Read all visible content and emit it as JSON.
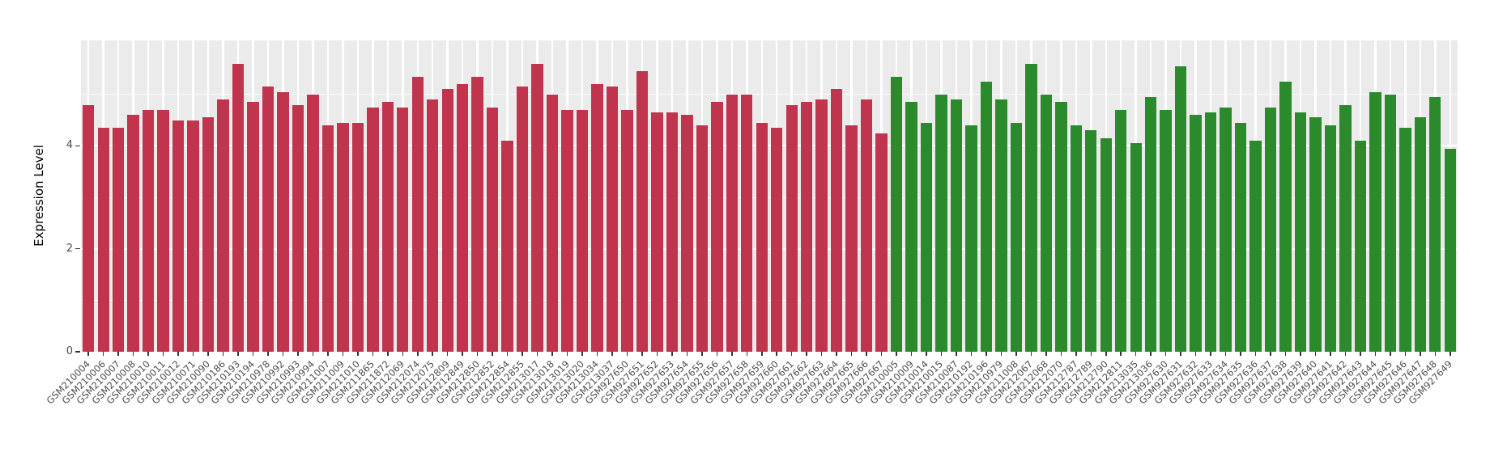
{
  "chart_data": {
    "type": "bar",
    "title": "",
    "xlabel": "",
    "ylabel": "Expression Level",
    "ylim": [
      0,
      6.05
    ],
    "yticks": [
      0,
      2,
      4
    ],
    "grid": true,
    "legend": "none",
    "panel_bg": "#ebebeb",
    "grid_color": "#ffffff",
    "tick_text_color": "#4d4d4d",
    "groups": [
      {
        "name": "group-red",
        "color": "#c0344e",
        "labels": [
          "GSM210004",
          "GSM210006",
          "GSM210007",
          "GSM210008",
          "GSM210010",
          "GSM210011",
          "GSM210012",
          "GSM210071",
          "GSM210090",
          "GSM210186",
          "GSM210193",
          "GSM210194",
          "GSM210978",
          "GSM210992",
          "GSM210993",
          "GSM210994",
          "GSM211007",
          "GSM211009",
          "GSM211010",
          "GSM211865",
          "GSM211872",
          "GSM212069",
          "GSM212074",
          "GSM212075",
          "GSM212809",
          "GSM212849",
          "GSM212850",
          "GSM212852",
          "GSM212854",
          "GSM212855",
          "GSM213017",
          "GSM213018",
          "GSM213019",
          "GSM213020",
          "GSM213034",
          "GSM213037",
          "GSM927650",
          "GSM927651",
          "GSM927652",
          "GSM927653",
          "GSM927654",
          "GSM927655",
          "GSM927656",
          "GSM927657",
          "GSM927658",
          "GSM927659",
          "GSM927660",
          "GSM927661",
          "GSM927662",
          "GSM927663",
          "GSM927664",
          "GSM927665",
          "GSM927666",
          "GSM927667"
        ],
        "values": [
          4.8,
          4.35,
          4.35,
          4.6,
          4.7,
          4.7,
          4.5,
          4.5,
          4.55,
          4.9,
          5.6,
          4.85,
          5.15,
          5.05,
          4.8,
          5.0,
          4.4,
          4.45,
          4.45,
          4.75,
          4.85,
          4.75,
          5.35,
          4.9,
          5.1,
          5.2,
          5.35,
          4.75,
          4.1,
          5.15,
          5.6,
          5.0,
          4.7,
          4.7,
          5.2,
          5.15,
          4.7,
          5.45,
          4.65,
          4.65,
          4.6,
          4.4,
          4.85,
          5.0,
          5.0,
          4.45,
          4.35,
          4.8,
          4.85,
          4.9,
          5.1,
          4.4,
          4.9,
          4.25
        ]
      },
      {
        "name": "group-green",
        "color": "#2b8a2b",
        "labels": [
          "GSM210005",
          "GSM210009",
          "GSM210014",
          "GSM210015",
          "GSM210087",
          "GSM210192",
          "GSM210196",
          "GSM210979",
          "GSM211008",
          "GSM212067",
          "GSM212068",
          "GSM212070",
          "GSM212787",
          "GSM212789",
          "GSM212790",
          "GSM212811",
          "GSM213035",
          "GSM213036",
          "GSM927630",
          "GSM927631",
          "GSM927632",
          "GSM927633",
          "GSM927634",
          "GSM927635",
          "GSM927636",
          "GSM927637",
          "GSM927638",
          "GSM927639",
          "GSM927640",
          "GSM927641",
          "GSM927642",
          "GSM927643",
          "GSM927644",
          "GSM927645",
          "GSM927646",
          "GSM927647",
          "GSM927648",
          "GSM927649"
        ],
        "values": [
          5.35,
          4.85,
          4.45,
          5.0,
          4.9,
          4.4,
          5.25,
          4.9,
          4.45,
          5.6,
          5.0,
          4.85,
          4.4,
          4.3,
          4.15,
          4.7,
          4.05,
          4.95,
          4.7,
          5.55,
          4.6,
          4.65,
          4.75,
          4.45,
          4.1,
          4.75,
          5.25,
          4.65,
          4.55,
          4.4,
          4.8,
          4.1,
          5.05,
          5.0,
          4.35,
          4.55,
          4.95,
          3.95
        ]
      }
    ]
  }
}
